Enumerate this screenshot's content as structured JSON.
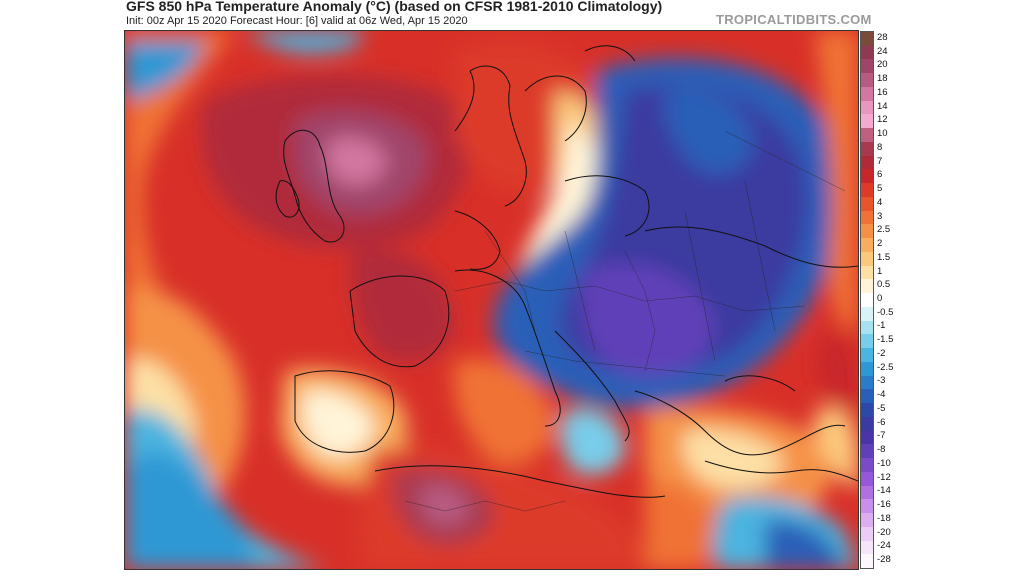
{
  "header": {
    "title": "GFS 850 hPa Temperature Anomaly (°C) (based on CFSR 1981-2010 Climatology)",
    "subtitle": "Init: 00z Apr 15 2020   Forecast Hour: [6]   valid at 06z Wed, Apr 15 2020",
    "brand": "TROPICALTIDBITS.COM"
  },
  "legend": {
    "levels": [
      {
        "label": "28",
        "color": "#7a4a3a"
      },
      {
        "label": "24",
        "color": "#8e3a52"
      },
      {
        "label": "20",
        "color": "#a0456a"
      },
      {
        "label": "18",
        "color": "#b85b82"
      },
      {
        "label": "16",
        "color": "#d277a0"
      },
      {
        "label": "14",
        "color": "#e898c0"
      },
      {
        "label": "12",
        "color": "#f2aacf"
      },
      {
        "label": "10",
        "color": "#c06080"
      },
      {
        "label": "8",
        "color": "#a83a50"
      },
      {
        "label": "7",
        "color": "#b02a3a"
      },
      {
        "label": "6",
        "color": "#c8262a"
      },
      {
        "label": "5",
        "color": "#dd3a2a"
      },
      {
        "label": "4",
        "color": "#e8542c"
      },
      {
        "label": "3",
        "color": "#f07236"
      },
      {
        "label": "2.5",
        "color": "#f59146"
      },
      {
        "label": "2",
        "color": "#f8ae5e"
      },
      {
        "label": "1.5",
        "color": "#fbc87c"
      },
      {
        "label": "1",
        "color": "#fde0a6"
      },
      {
        "label": "0.5",
        "color": "#fff4d8"
      },
      {
        "label": "0",
        "color": "#ffffff"
      },
      {
        "label": "-0.5",
        "color": "#d8f2f8"
      },
      {
        "label": "-1",
        "color": "#a8e2f2"
      },
      {
        "label": "-1.5",
        "color": "#78cdea"
      },
      {
        "label": "-2",
        "color": "#4cb4e0"
      },
      {
        "label": "-2.5",
        "color": "#2e98d4"
      },
      {
        "label": "-3",
        "color": "#2a7cc8"
      },
      {
        "label": "-4",
        "color": "#2a5fb8"
      },
      {
        "label": "-5",
        "color": "#2e48a8"
      },
      {
        "label": "-6",
        "color": "#3a3aa0"
      },
      {
        "label": "-7",
        "color": "#4a34a8"
      },
      {
        "label": "-8",
        "color": "#6040b8"
      },
      {
        "label": "-10",
        "color": "#7a4ac8"
      },
      {
        "label": "-12",
        "color": "#9458d8"
      },
      {
        "label": "-14",
        "color": "#b070e0"
      },
      {
        "label": "-16",
        "color": "#c890ea"
      },
      {
        "label": "-18",
        "color": "#dcaef0"
      },
      {
        "label": "-20",
        "color": "#ecccf6"
      },
      {
        "label": "-24",
        "color": "#f6e4fa"
      },
      {
        "label": "-28",
        "color": "#fdf6fd"
      }
    ]
  }
}
